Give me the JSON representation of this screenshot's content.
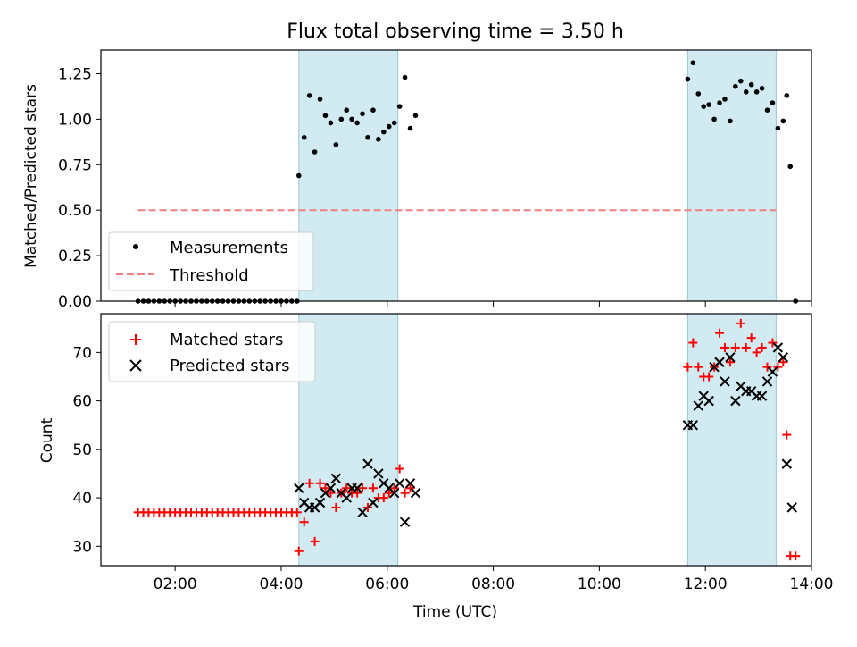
{
  "chart_data": [
    {
      "type": "scatter",
      "title": "Flux total observing time = 3.50 h",
      "xlabel": "",
      "ylabel": "Matched/Predicted stars",
      "xlim": [
        "00:36",
        "14:00"
      ],
      "ylim": [
        0,
        1.38
      ],
      "yticks": [
        "0.00",
        "0.25",
        "0.50",
        "0.75",
        "1.00",
        "1.25"
      ],
      "grid": false,
      "legend_position": "lower-left",
      "shaded_intervals": [
        [
          "04:20",
          "06:12"
        ],
        [
          "11:40",
          "13:20"
        ]
      ],
      "shade_color": "#add8e6",
      "threshold": {
        "name": "Threshold",
        "y": 0.5,
        "x_range": [
          "01:18",
          "13:20"
        ],
        "color": "#f08080"
      },
      "series": [
        {
          "name": "Measurements",
          "marker": "dot",
          "color": "#000000",
          "points": [
            [
              "01:18",
              0
            ],
            [
              "01:24",
              0
            ],
            [
              "01:30",
              0
            ],
            [
              "01:36",
              0
            ],
            [
              "01:42",
              0
            ],
            [
              "01:48",
              0
            ],
            [
              "01:54",
              0
            ],
            [
              "02:00",
              0
            ],
            [
              "02:06",
              0
            ],
            [
              "02:12",
              0
            ],
            [
              "02:18",
              0
            ],
            [
              "02:24",
              0
            ],
            [
              "02:30",
              0
            ],
            [
              "02:36",
              0
            ],
            [
              "02:42",
              0
            ],
            [
              "02:48",
              0
            ],
            [
              "02:54",
              0
            ],
            [
              "03:00",
              0
            ],
            [
              "03:06",
              0
            ],
            [
              "03:12",
              0
            ],
            [
              "03:18",
              0
            ],
            [
              "03:24",
              0
            ],
            [
              "03:30",
              0
            ],
            [
              "03:36",
              0
            ],
            [
              "03:42",
              0
            ],
            [
              "03:48",
              0
            ],
            [
              "03:54",
              0
            ],
            [
              "04:00",
              0
            ],
            [
              "04:06",
              0
            ],
            [
              "04:12",
              0
            ],
            [
              "04:18",
              0
            ],
            [
              "04:20",
              0.69
            ],
            [
              "04:26",
              0.9
            ],
            [
              "04:32",
              1.13
            ],
            [
              "04:38",
              0.82
            ],
            [
              "04:44",
              1.11
            ],
            [
              "04:50",
              1.02
            ],
            [
              "04:56",
              0.98
            ],
            [
              "05:02",
              0.86
            ],
            [
              "05:08",
              1.0
            ],
            [
              "05:14",
              1.05
            ],
            [
              "05:20",
              1.0
            ],
            [
              "05:26",
              0.98
            ],
            [
              "05:32",
              1.03
            ],
            [
              "05:38",
              0.9
            ],
            [
              "05:44",
              1.05
            ],
            [
              "05:50",
              0.89
            ],
            [
              "05:56",
              0.93
            ],
            [
              "06:02",
              0.96
            ],
            [
              "06:08",
              0.98
            ],
            [
              "06:14",
              1.07
            ],
            [
              "06:20",
              1.23
            ],
            [
              "06:26",
              0.95
            ],
            [
              "06:32",
              1.02
            ],
            [
              "11:40",
              1.22
            ],
            [
              "11:46",
              1.31
            ],
            [
              "11:52",
              1.14
            ],
            [
              "11:58",
              1.07
            ],
            [
              "12:04",
              1.08
            ],
            [
              "12:10",
              1.0
            ],
            [
              "12:16",
              1.09
            ],
            [
              "12:22",
              1.11
            ],
            [
              "12:28",
              0.99
            ],
            [
              "12:34",
              1.18
            ],
            [
              "12:40",
              1.21
            ],
            [
              "12:46",
              1.15
            ],
            [
              "12:52",
              1.19
            ],
            [
              "12:58",
              1.15
            ],
            [
              "13:04",
              1.17
            ],
            [
              "13:10",
              1.05
            ],
            [
              "13:16",
              1.09
            ],
            [
              "13:22",
              0.95
            ],
            [
              "13:28",
              0.99
            ],
            [
              "13:32",
              1.13
            ],
            [
              "13:36",
              0.74
            ],
            [
              "13:42",
              0
            ]
          ]
        }
      ]
    },
    {
      "type": "scatter",
      "title": "",
      "xlabel": "Time (UTC)",
      "ylabel": "Count",
      "xlim": [
        "00:36",
        "14:00"
      ],
      "xticks": [
        "02:00",
        "04:00",
        "06:00",
        "08:00",
        "10:00",
        "12:00",
        "14:00"
      ],
      "ylim": [
        26,
        78
      ],
      "yticks": [
        "30",
        "40",
        "50",
        "60",
        "70"
      ],
      "grid": false,
      "legend_position": "upper-left",
      "shaded_intervals": [
        [
          "04:20",
          "06:12"
        ],
        [
          "11:40",
          "13:20"
        ]
      ],
      "series": [
        {
          "name": "Matched stars",
          "marker": "plus",
          "color": "#ff0000",
          "points": [
            [
              "01:18",
              37
            ],
            [
              "01:24",
              37
            ],
            [
              "01:30",
              37
            ],
            [
              "01:36",
              37
            ],
            [
              "01:42",
              37
            ],
            [
              "01:48",
              37
            ],
            [
              "01:54",
              37
            ],
            [
              "02:00",
              37
            ],
            [
              "02:06",
              37
            ],
            [
              "02:12",
              37
            ],
            [
              "02:18",
              37
            ],
            [
              "02:24",
              37
            ],
            [
              "02:30",
              37
            ],
            [
              "02:36",
              37
            ],
            [
              "02:42",
              37
            ],
            [
              "02:48",
              37
            ],
            [
              "02:54",
              37
            ],
            [
              "03:00",
              37
            ],
            [
              "03:06",
              37
            ],
            [
              "03:12",
              37
            ],
            [
              "03:18",
              37
            ],
            [
              "03:24",
              37
            ],
            [
              "03:30",
              37
            ],
            [
              "03:36",
              37
            ],
            [
              "03:42",
              37
            ],
            [
              "03:48",
              37
            ],
            [
              "03:54",
              37
            ],
            [
              "04:00",
              37
            ],
            [
              "04:06",
              37
            ],
            [
              "04:12",
              37
            ],
            [
              "04:18",
              37
            ],
            [
              "04:20",
              29
            ],
            [
              "04:26",
              35
            ],
            [
              "04:32",
              43
            ],
            [
              "04:38",
              31
            ],
            [
              "04:44",
              43
            ],
            [
              "04:50",
              42
            ],
            [
              "04:56",
              41
            ],
            [
              "05:02",
              38
            ],
            [
              "05:08",
              41
            ],
            [
              "05:14",
              42
            ],
            [
              "05:20",
              41
            ],
            [
              "05:26",
              41
            ],
            [
              "05:32",
              42
            ],
            [
              "05:38",
              38
            ],
            [
              "05:44",
              42
            ],
            [
              "05:50",
              40
            ],
            [
              "05:56",
              40
            ],
            [
              "06:02",
              41
            ],
            [
              "06:08",
              42
            ],
            [
              "06:14",
              46
            ],
            [
              "06:20",
              41
            ],
            [
              "06:26",
              42
            ],
            [
              "11:40",
              67
            ],
            [
              "11:46",
              72
            ],
            [
              "11:52",
              67
            ],
            [
              "11:58",
              65
            ],
            [
              "12:04",
              65
            ],
            [
              "12:10",
              67
            ],
            [
              "12:16",
              74
            ],
            [
              "12:22",
              71
            ],
            [
              "12:28",
              68
            ],
            [
              "12:34",
              71
            ],
            [
              "12:40",
              76
            ],
            [
              "12:46",
              71
            ],
            [
              "12:52",
              73
            ],
            [
              "12:58",
              70
            ],
            [
              "13:04",
              71
            ],
            [
              "13:10",
              67
            ],
            [
              "13:16",
              72
            ],
            [
              "13:22",
              67
            ],
            [
              "13:28",
              68
            ],
            [
              "13:32",
              53
            ],
            [
              "13:36",
              28
            ],
            [
              "13:42",
              28
            ]
          ]
        },
        {
          "name": "Predicted stars",
          "marker": "x",
          "color": "#000000",
          "points": [
            [
              "04:20",
              42
            ],
            [
              "04:26",
              39
            ],
            [
              "04:32",
              38
            ],
            [
              "04:38",
              38
            ],
            [
              "04:44",
              39
            ],
            [
              "04:50",
              41
            ],
            [
              "04:56",
              42
            ],
            [
              "05:02",
              44
            ],
            [
              "05:08",
              41
            ],
            [
              "05:14",
              40
            ],
            [
              "05:20",
              42
            ],
            [
              "05:26",
              42
            ],
            [
              "05:32",
              37
            ],
            [
              "05:38",
              47
            ],
            [
              "05:44",
              39
            ],
            [
              "05:50",
              45
            ],
            [
              "05:56",
              43
            ],
            [
              "06:02",
              42
            ],
            [
              "06:08",
              41
            ],
            [
              "06:14",
              43
            ],
            [
              "06:20",
              35
            ],
            [
              "06:26",
              43
            ],
            [
              "06:32",
              41
            ],
            [
              "11:40",
              55
            ],
            [
              "11:46",
              55
            ],
            [
              "11:52",
              59
            ],
            [
              "11:58",
              61
            ],
            [
              "12:04",
              60
            ],
            [
              "12:10",
              67
            ],
            [
              "12:16",
              68
            ],
            [
              "12:22",
              64
            ],
            [
              "12:28",
              69
            ],
            [
              "12:34",
              60
            ],
            [
              "12:40",
              63
            ],
            [
              "12:46",
              62
            ],
            [
              "12:52",
              62
            ],
            [
              "12:58",
              61
            ],
            [
              "13:04",
              61
            ],
            [
              "13:10",
              64
            ],
            [
              "13:16",
              66
            ],
            [
              "13:22",
              71
            ],
            [
              "13:28",
              69
            ],
            [
              "13:32",
              47
            ],
            [
              "13:38",
              38
            ]
          ]
        }
      ]
    }
  ]
}
